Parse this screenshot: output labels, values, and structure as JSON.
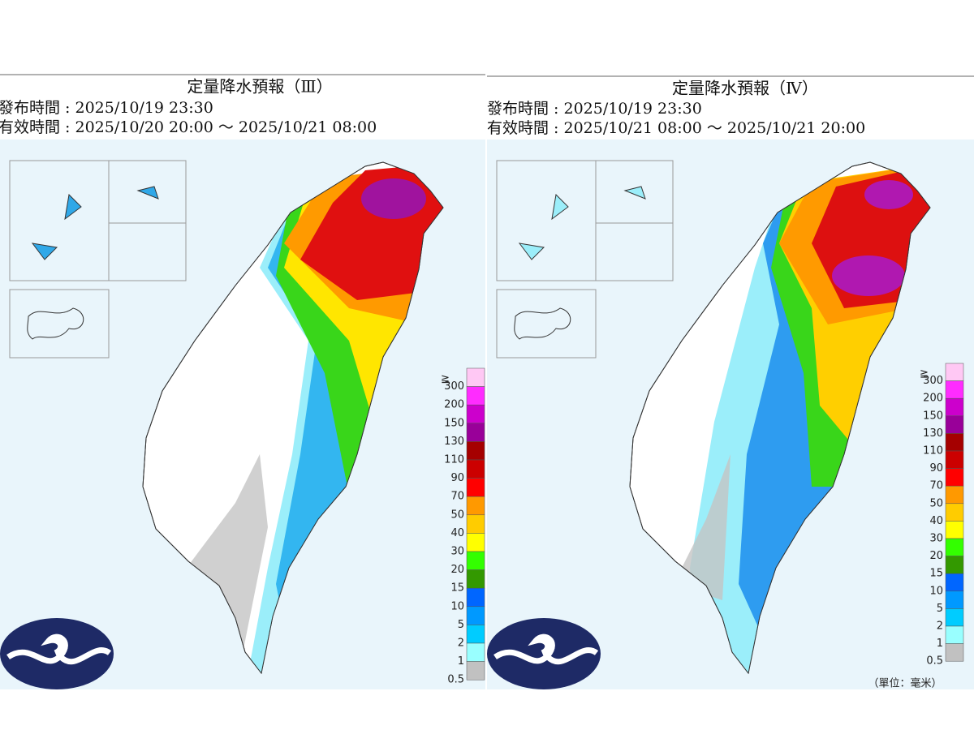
{
  "panels": [
    {
      "title": "定量降水預報（Ⅲ）",
      "issued": "發布時間 : 2025/10/19 23:30",
      "valid": "有效時間 : 2025/10/20 20:00 ～ 2025/10/21 08:00",
      "legend": {
        "prefix": "≧",
        "labels": [
          "300",
          "200",
          "150",
          "130",
          "110",
          "90",
          "70",
          "50",
          "40",
          "30",
          "20",
          "15",
          "10",
          "5",
          "2",
          "1",
          "0.5"
        ]
      }
    },
    {
      "title": "定量降水預報（Ⅳ）",
      "issued": "發布時間 : 2025/10/19 23:30",
      "valid": "有效時間 : 2025/10/21 08:00 ～ 2025/10/21 20:00",
      "legend": {
        "prefix": "≧",
        "labels": [
          "300",
          "200",
          "150",
          "130",
          "110",
          "90",
          "70",
          "50",
          "40",
          "30",
          "20",
          "15",
          "10",
          "5",
          "2",
          "1",
          "0.5"
        ]
      },
      "unit": "（單位：毫米）"
    }
  ]
}
